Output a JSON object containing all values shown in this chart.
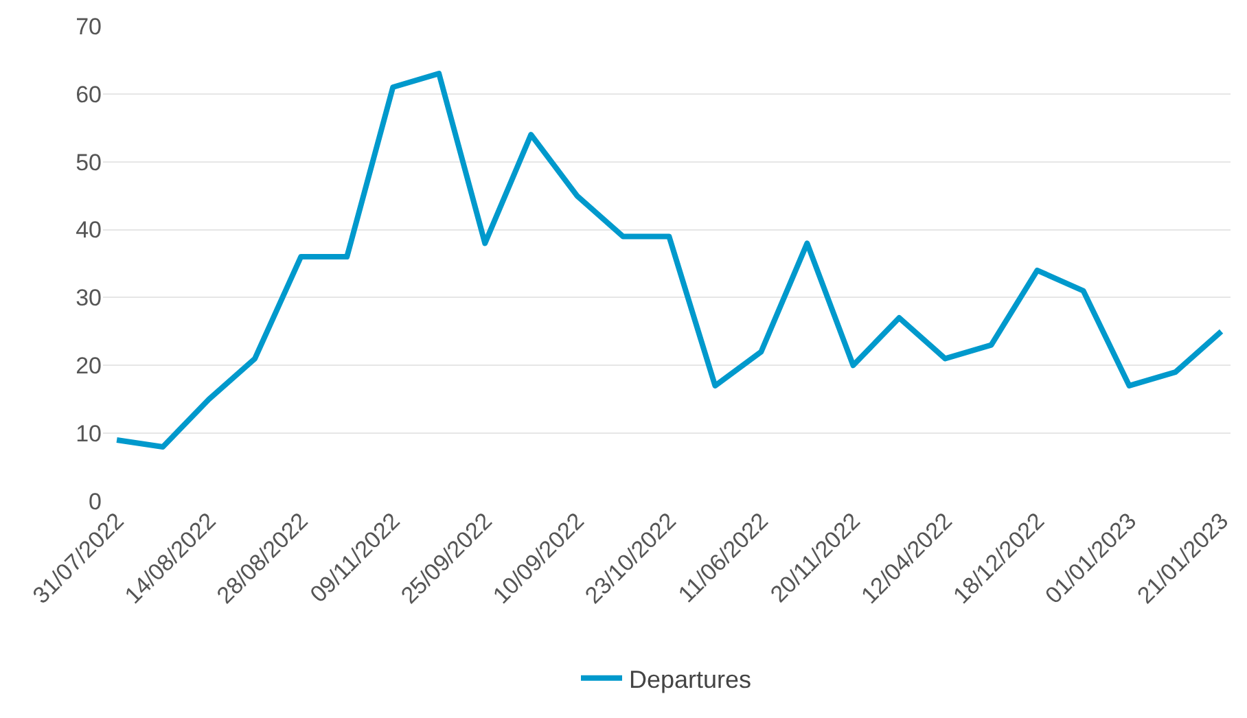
{
  "chart_data": {
    "type": "line",
    "categories": [
      "31/07/2022",
      null,
      "14/08/2022",
      null,
      "28/08/2022",
      null,
      "09/11/2022",
      null,
      "25/09/2022",
      null,
      "10/09/2022",
      null,
      "23/10/2022",
      null,
      "11/06/2022",
      null,
      "20/11/2022",
      null,
      "12/04/2022",
      null,
      "18/12/2022",
      null,
      "01/01/2023",
      null,
      "21/01/2023"
    ],
    "series": [
      {
        "name": "Departures",
        "color": "#0099cc",
        "values": [
          9,
          8,
          15,
          21,
          36,
          36,
          61,
          63,
          38,
          54,
          45,
          39,
          39,
          17,
          22,
          38,
          20,
          27,
          21,
          23,
          34,
          31,
          17,
          19,
          25
        ]
      }
    ],
    "ylim": [
      0,
      70
    ],
    "yticks": [
      0,
      10,
      20,
      30,
      40,
      50,
      60,
      70
    ],
    "grid": "y",
    "legend": "bottom",
    "marker": "none",
    "line_style": "solid"
  }
}
